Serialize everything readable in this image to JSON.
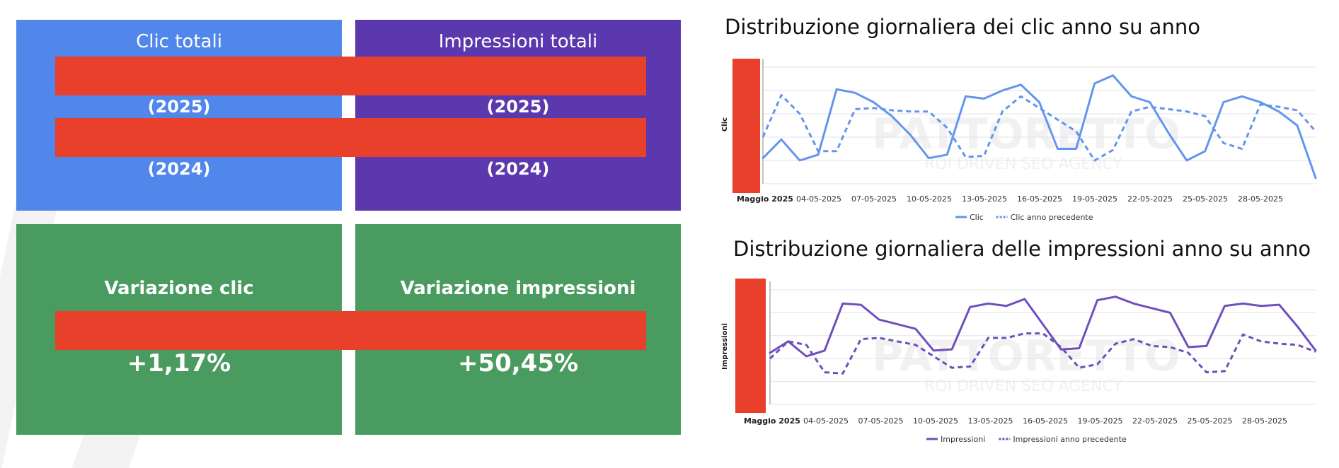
{
  "colors": {
    "clicks_card": "#5187ea",
    "impressions_card": "#5b38ae",
    "variation_card": "#4a9b5f",
    "redaction": "#e8402a",
    "clicks_line": "#6495ee",
    "impressions_line": "#6f4fbd",
    "grid": "#e3e3e3"
  },
  "kpis": {
    "clicks": {
      "title": "Clic totali",
      "year_current": "(2025)",
      "year_previous": "(2024)"
    },
    "impressions": {
      "title": "Impressioni totali",
      "year_current": "(2025)",
      "year_previous": "(2024)"
    },
    "clicks_variation": {
      "label": "Variazione clic",
      "value": "+1,17%"
    },
    "impressions_variation": {
      "label": "Variazione impressioni",
      "value": "+50,45%"
    }
  },
  "watermark": {
    "brand": "PATTORETTO",
    "tagline": "ROI DRIVEN SEO AGENCY"
  },
  "chart_data": [
    {
      "type": "line",
      "title": "Distribuzione giornaliera dei clic anno su anno",
      "ylabel": "Clic",
      "x_start_label": "Maggio 2025",
      "x_tick_labels": [
        "04-05-2025",
        "07-05-2025",
        "10-05-2025",
        "13-05-2025",
        "16-05-2025",
        "19-05-2025",
        "22-05-2025",
        "25-05-2025",
        "28-05-2025"
      ],
      "ylim": [
        0,
        100
      ],
      "grid": true,
      "legend_position": "bottom",
      "series": [
        {
          "name": "Clic",
          "style": "solid",
          "values": [
            22,
            38,
            20,
            25,
            81,
            78,
            70,
            58,
            42,
            22,
            25,
            75,
            73,
            80,
            85,
            70,
            30,
            30,
            86,
            93,
            75,
            70,
            44,
            20,
            28,
            70,
            75,
            70,
            62,
            50,
            5
          ]
        },
        {
          "name": "Clic anno precedente",
          "style": "dashed",
          "values": [
            40,
            76,
            60,
            28,
            28,
            64,
            65,
            63,
            62,
            62,
            48,
            23,
            24,
            62,
            75,
            65,
            55,
            45,
            20,
            29,
            62,
            66,
            64,
            62,
            58,
            35,
            30,
            68,
            66,
            63,
            45
          ]
        }
      ]
    },
    {
      "type": "line",
      "title": "Distribuzione giornaliera delle impressioni anno su anno",
      "ylabel": "Impressioni",
      "x_start_label": "Maggio 2025",
      "x_tick_labels": [
        "04-05-2025",
        "07-05-2025",
        "10-05-2025",
        "13-05-2025",
        "16-05-2025",
        "19-05-2025",
        "22-05-2025",
        "25-05-2025",
        "28-05-2025"
      ],
      "ylim": [
        0,
        100
      ],
      "grid": true,
      "legend_position": "bottom",
      "series": [
        {
          "name": "Impressioni",
          "style": "solid",
          "values": [
            45,
            55,
            42,
            47,
            88,
            87,
            74,
            70,
            66,
            47,
            48,
            85,
            88,
            86,
            92,
            70,
            48,
            49,
            91,
            94,
            88,
            84,
            80,
            50,
            51,
            86,
            88,
            86,
            87,
            68,
            47
          ]
        },
        {
          "name": "Impressioni anno precedente",
          "style": "dashed",
          "values": [
            40,
            55,
            52,
            28,
            27,
            57,
            58,
            55,
            52,
            42,
            32,
            33,
            58,
            58,
            62,
            62,
            50,
            32,
            35,
            53,
            57,
            51,
            50,
            45,
            28,
            29,
            61,
            55,
            53,
            52,
            46
          ]
        }
      ]
    }
  ]
}
